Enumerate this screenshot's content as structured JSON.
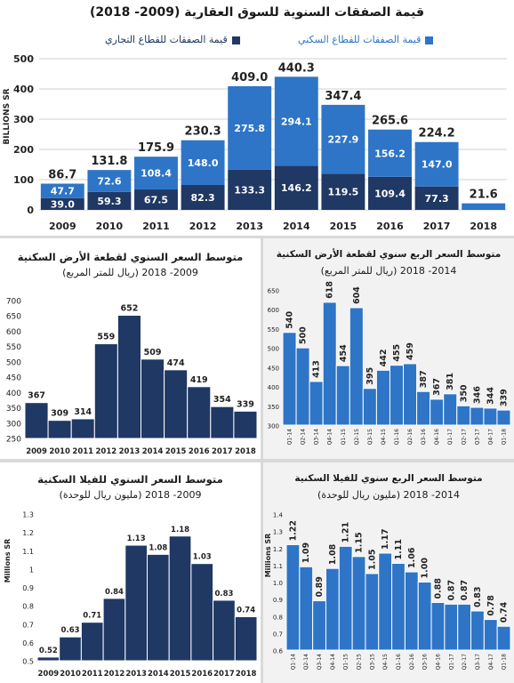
{
  "charts": [
    {
      "id": "main",
      "type": "bar",
      "title": "قيمة الصفقات السنوية للسوق العقارية (2009- 2018)",
      "ylabel": "BILLIONS SR",
      "ylim": [
        0,
        500
      ],
      "yticks": [
        0,
        100,
        200,
        300,
        400,
        500
      ],
      "stacked": true,
      "categories": [
        "2009",
        "2010",
        "2011",
        "2012",
        "2013",
        "2014",
        "2015",
        "2016",
        "2017",
        "2018"
      ],
      "totals": [
        "86.7",
        "131.8",
        "175.9",
        "230.3",
        "409.0",
        "440.3",
        "347.4",
        "265.6",
        "224.2",
        "21.6"
      ],
      "series": [
        {
          "name": "قيمة الصفقات للقطاع التجاري",
          "color": "#1f3864",
          "values": [
            39.0,
            59.3,
            67.5,
            82.3,
            133.3,
            146.2,
            119.5,
            109.4,
            77.3,
            0
          ],
          "labels": [
            "39.0",
            "59.3",
            "67.5",
            "82.3",
            "133.3",
            "146.2",
            "119.5",
            "109.4",
            "77.3",
            ""
          ]
        },
        {
          "name": "قيمة الصفقات للقطاع السكني",
          "color": "#2e75c7",
          "values": [
            47.7,
            72.6,
            108.4,
            148.0,
            275.8,
            294.1,
            227.9,
            156.2,
            147.0,
            21.6
          ],
          "labels": [
            "47.7",
            "72.6",
            "108.4",
            "148.0",
            "275.8",
            "294.1",
            "227.9",
            "156.2",
            "147.0",
            ""
          ]
        }
      ]
    },
    {
      "id": "land-annual",
      "type": "bar",
      "title": "متوسط السعر السنوي لقطعة الأرض السكنية",
      "subtitle": "(ريال للمتر المربع) 2009- 2018",
      "ylim": [
        250,
        700
      ],
      "yticks": [
        250,
        300,
        350,
        400,
        450,
        500,
        550,
        600,
        650,
        700
      ],
      "color": "#1f3864",
      "categories": [
        "2009",
        "2010",
        "2011",
        "2012",
        "2013",
        "2014",
        "2015",
        "2016",
        "2017",
        "2018"
      ],
      "values": [
        367,
        309,
        314,
        559,
        652,
        509,
        474,
        419,
        354,
        339
      ],
      "labels": [
        "367",
        "309",
        "314",
        "559",
        "652",
        "509",
        "474",
        "419",
        "354",
        "339"
      ]
    },
    {
      "id": "land-quarterly",
      "type": "bar",
      "title": "متوسط السعر الربع سنوي لقطعة الأرض السكنية",
      "subtitle": "(ريال للمتر المربع) 2014- 2018",
      "ylim": [
        300,
        650
      ],
      "yticks": [
        300,
        350,
        400,
        450,
        500,
        550,
        600,
        650
      ],
      "color": "#2e75c7",
      "categories": [
        "Q1-14",
        "Q2-14",
        "Q3-14",
        "Q4-14",
        "Q1-15",
        "Q2-15",
        "Q3-15",
        "Q4-15",
        "Q1-16",
        "Q2-16",
        "Q3-16",
        "Q4-16",
        "Q1-17",
        "Q2-17",
        "Q3-17",
        "Q4-17",
        "Q1-18"
      ],
      "values": [
        540,
        500,
        413,
        618,
        454,
        604,
        395,
        442,
        455,
        459,
        387,
        367,
        381,
        350,
        346,
        344,
        339
      ],
      "labels": [
        "540",
        "500",
        "413",
        "618",
        "454",
        "604",
        "395",
        "442",
        "455",
        "459",
        "387",
        "367",
        "381",
        "350",
        "346",
        "344",
        "339"
      ]
    },
    {
      "id": "villa-annual",
      "type": "bar",
      "title": "متوسط السعر السنوي للفيلا السكنية",
      "subtitle": "(مليون ريال للوحدة) 2009- 2018",
      "ylabel": "Millions SR",
      "ylim": [
        0.5,
        1.3
      ],
      "yticks": [
        0.5,
        0.6,
        0.7,
        0.8,
        0.9,
        1.0,
        1.1,
        1.2,
        1.3
      ],
      "ytick_labels": [
        "0.5",
        "0.6",
        "0.7",
        "0.8",
        "0.9",
        "1",
        "1.1",
        "1.2",
        "1.3"
      ],
      "color": "#1f3864",
      "categories": [
        "2009",
        "2010",
        "2011",
        "2012",
        "2013",
        "2014",
        "2015",
        "2016",
        "2017",
        "2018"
      ],
      "values": [
        0.52,
        0.63,
        0.71,
        0.84,
        1.13,
        1.08,
        1.18,
        1.03,
        0.83,
        0.74
      ],
      "labels": [
        "0.52",
        "0.63",
        "0.71",
        "0.84",
        "1.13",
        "1.08",
        "1.18",
        "1.03",
        "0.83",
        "0.74"
      ]
    },
    {
      "id": "villa-quarterly",
      "type": "bar",
      "title": "متوسط السعر الربع سنوي للفيلا السكنية",
      "subtitle": "(مليون ريال للوحدة) 2014- 2018",
      "ylabel": "Millions SR",
      "ylim": [
        0.6,
        1.4
      ],
      "yticks": [
        0.6,
        0.7,
        0.8,
        0.9,
        1.0,
        1.1,
        1.2,
        1.3,
        1.4
      ],
      "ytick_labels": [
        "0.6",
        "0.7",
        "0.8",
        "0.9",
        "1.0",
        "1.1",
        "1.2",
        "1.3",
        "1.4"
      ],
      "color": "#2e75c7",
      "categories": [
        "Q1-14",
        "Q2-14",
        "Q3-14",
        "Q4-14",
        "Q1-15",
        "Q2-15",
        "Q3-15",
        "Q4-15",
        "Q1-16",
        "Q2-16",
        "Q3-16",
        "Q4-16",
        "Q1-17",
        "Q2-17",
        "Q3-17",
        "Q4-17",
        "Q1-18"
      ],
      "values": [
        1.22,
        1.09,
        0.89,
        1.08,
        1.21,
        1.15,
        1.05,
        1.17,
        1.11,
        1.06,
        1.0,
        0.88,
        0.87,
        0.87,
        0.83,
        0.78,
        0.74
      ],
      "labels": [
        "1.22",
        "1.09",
        "0.89",
        "1.08",
        "1.21",
        "1.15",
        "1.05",
        "1.17",
        "1.11",
        "1.06",
        "1.00",
        "0.88",
        "0.87",
        "0.87",
        "0.83",
        "0.78",
        "0.74"
      ]
    }
  ]
}
